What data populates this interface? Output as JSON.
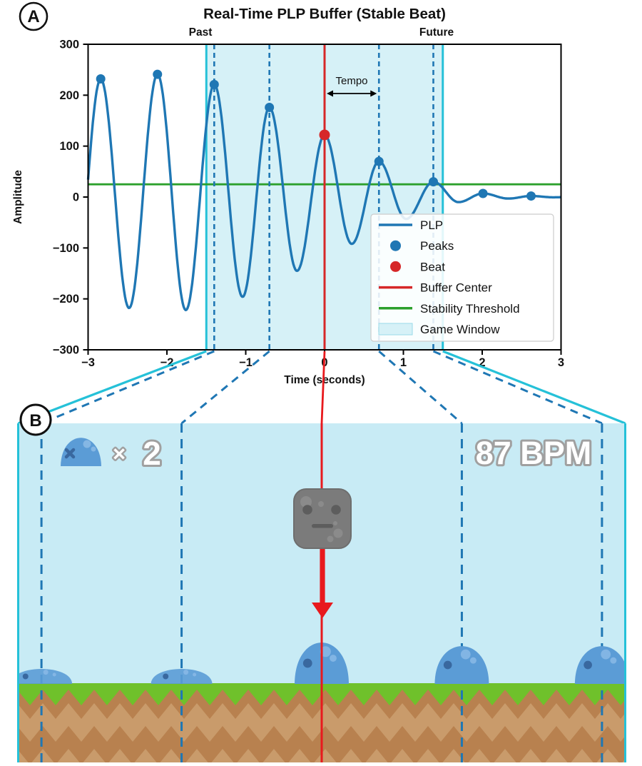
{
  "figure": {
    "panel_a_label": "A",
    "panel_b_label": "B"
  },
  "chart_data": {
    "type": "line",
    "title": "Real-Time PLP Buffer (Stable Beat)",
    "xlabel": "Time (seconds)",
    "ylabel": "Amplitude",
    "xlim": [
      -3,
      3
    ],
    "ylim": [
      -300,
      300
    ],
    "x_ticks": [
      -3,
      -2,
      -1,
      0,
      1,
      2,
      3
    ],
    "y_ticks": [
      300,
      200,
      100,
      0,
      -100,
      -200,
      -300
    ],
    "past_label": "Past",
    "future_label": "Future",
    "tempo_annotation": {
      "text": "Tempo",
      "from_t": 0,
      "to_t": 0.69
    },
    "plp_line": {
      "name": "PLP",
      "color": "#1f77b4",
      "anchors_peaks_troughs": [
        [
          -3.19,
          -225
        ],
        [
          -2.84,
          232
        ],
        [
          -2.48,
          -218
        ],
        [
          -2.12,
          241
        ],
        [
          -1.76,
          -222
        ],
        [
          -1.4,
          221
        ],
        [
          -1.04,
          -196
        ],
        [
          -0.7,
          176
        ],
        [
          -0.35,
          -145
        ],
        [
          0,
          122
        ],
        [
          0.345,
          -92
        ],
        [
          0.69,
          70
        ],
        [
          1.035,
          -43
        ],
        [
          1.38,
          30
        ],
        [
          1.7,
          -10
        ],
        [
          2.01,
          7
        ],
        [
          2.33,
          -3
        ],
        [
          2.62,
          2
        ],
        [
          2.9,
          -0.5
        ],
        [
          3.2,
          0.3
        ]
      ]
    },
    "peaks": {
      "name": "Peaks",
      "color": "#1f77b4",
      "points": [
        [
          -2.84,
          232
        ],
        [
          -2.12,
          241
        ],
        [
          -1.4,
          221
        ],
        [
          -0.7,
          176
        ],
        [
          0.69,
          70
        ],
        [
          1.38,
          30
        ],
        [
          2.01,
          7
        ],
        [
          2.62,
          2
        ]
      ]
    },
    "beat": {
      "name": "Beat",
      "color": "#d62728",
      "point": [
        0,
        122
      ]
    },
    "buffer_center": {
      "name": "Buffer Center",
      "color": "#d62728",
      "x": 0
    },
    "stability_threshold": {
      "name": "Stability Threshold",
      "color": "#2ca02c",
      "y": 25
    },
    "game_window": {
      "name": "Game Window",
      "fill": "#d6f1f7",
      "edge_color": "#25c1d8",
      "x0": -1.5,
      "x1": 1.5
    },
    "beat_gridlines_t": [
      -1.4,
      -0.7,
      0.69,
      1.38
    ],
    "legend": {
      "labels": [
        "PLP",
        "Peaks",
        "Beat",
        "Buffer Center",
        "Stability Threshold",
        "Game Window"
      ]
    }
  },
  "game_panel": {
    "hud": {
      "counter_symbol": "×",
      "counter_value": "2",
      "bpm_text": "87 BPM",
      "count": 2,
      "bpm": 87
    },
    "window_t": [
      -1.5,
      1.5
    ],
    "beat_marks_t": [
      -1.38,
      -0.69,
      0.69,
      1.38
    ],
    "center_t": 0,
    "slimes": [
      {
        "t": -1.38,
        "state": "squashed"
      },
      {
        "t": -0.69,
        "state": "squashed"
      },
      {
        "t": 0,
        "state": "bounce"
      },
      {
        "t": 0.69,
        "state": "idle"
      },
      {
        "t": 1.38,
        "state": "idle"
      }
    ],
    "character": {
      "type": "rock-character",
      "drop_target_t": 0
    },
    "colors": {
      "sky": "#c8ebf5",
      "grass": "#6fc12b",
      "dirt": "#b8814f",
      "dirt_light": "#c99b6b",
      "slime": "#5b9cd6",
      "slime_dark": "#39689f",
      "slime_light": "#8abae6",
      "character": "#7b7b7b",
      "character_dark": "#5d5d5d",
      "character_light": "#8d8d8d",
      "arrow": "#e8191d",
      "hud_outline": "#a0a0a0",
      "cyan": "#25c1d8",
      "dash_blue": "#1f77b4"
    }
  }
}
